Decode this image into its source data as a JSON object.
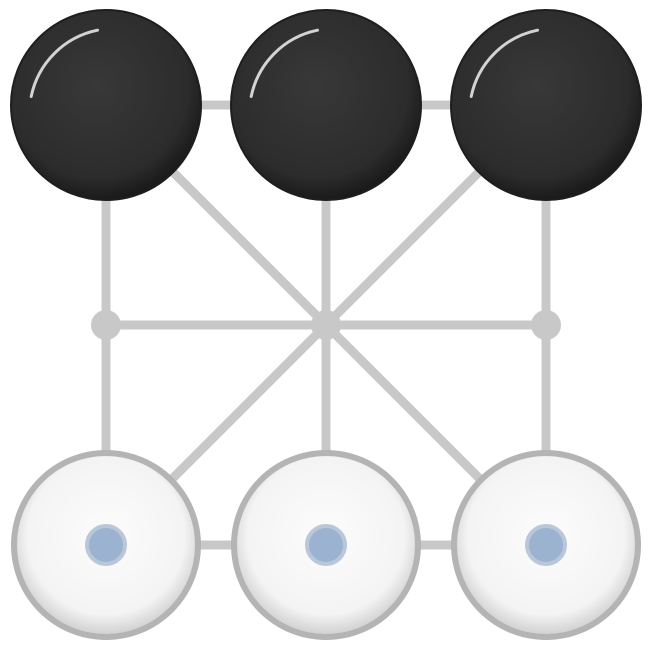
{
  "game": {
    "board": {
      "points": [
        {
          "id": "a3",
          "col": 0,
          "row": 0
        },
        {
          "id": "b3",
          "col": 1,
          "row": 0
        },
        {
          "id": "c3",
          "col": 2,
          "row": 0
        },
        {
          "id": "a2",
          "col": 0,
          "row": 1
        },
        {
          "id": "b2",
          "col": 1,
          "row": 1
        },
        {
          "id": "c2",
          "col": 2,
          "row": 1
        },
        {
          "id": "a1",
          "col": 0,
          "row": 2
        },
        {
          "id": "b1",
          "col": 1,
          "row": 2
        },
        {
          "id": "c1",
          "col": 2,
          "row": 2
        }
      ],
      "lines": [
        [
          "a3",
          "b3"
        ],
        [
          "b3",
          "c3"
        ],
        [
          "a2",
          "b2"
        ],
        [
          "b2",
          "c2"
        ],
        [
          "a1",
          "b1"
        ],
        [
          "b1",
          "c1"
        ],
        [
          "a3",
          "a2"
        ],
        [
          "a2",
          "a1"
        ],
        [
          "b3",
          "b2"
        ],
        [
          "b2",
          "b1"
        ],
        [
          "c3",
          "c2"
        ],
        [
          "c2",
          "c1"
        ],
        [
          "a3",
          "b2"
        ],
        [
          "b2",
          "c1"
        ],
        [
          "c3",
          "b2"
        ],
        [
          "b2",
          "a1"
        ]
      ],
      "colors": {
        "line": "#c8c8c8",
        "node": "#c8c8c8",
        "black_piece": "#2e2e2e",
        "white_piece": "#fafafa",
        "white_piece_rim": "#b4b4b4",
        "move_marker": "#9bb3d1"
      }
    },
    "pieces": [
      {
        "point": "a3",
        "color": "black"
      },
      {
        "point": "b3",
        "color": "black"
      },
      {
        "point": "c3",
        "color": "black"
      },
      {
        "point": "a1",
        "color": "white",
        "marked": true
      },
      {
        "point": "b1",
        "color": "white",
        "marked": true
      },
      {
        "point": "c1",
        "color": "white",
        "marked": true
      }
    ],
    "empty_points": [
      "a2",
      "b2",
      "c2"
    ]
  }
}
